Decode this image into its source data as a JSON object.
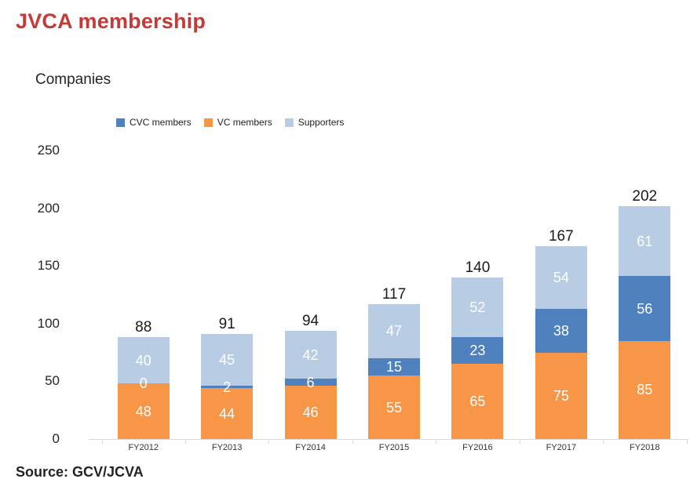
{
  "title": "JVCA membership",
  "source_text": "Source: GCV/JCVA",
  "colors": {
    "title": "#c23b38",
    "text": "#262626",
    "axis_line": "#d9d9d9",
    "bar_value_label": "#ffffff"
  },
  "chart_data": {
    "type": "bar",
    "stacked": true,
    "title": "JVCA membership",
    "ylabel": "Companies",
    "xlabel": "",
    "categories": [
      "FY2012",
      "FY2013",
      "FY2014",
      "FY2015",
      "FY2016",
      "FY2017",
      "FY2018"
    ],
    "series": [
      {
        "name": "CVC members",
        "color": "#4e81bd",
        "values": [
          0,
          2,
          6,
          15,
          23,
          38,
          56
        ]
      },
      {
        "name": "VC members",
        "color": "#f79646",
        "values": [
          48,
          44,
          46,
          55,
          65,
          75,
          85
        ]
      },
      {
        "name": "Supporters",
        "color": "#b8cce4",
        "values": [
          40,
          45,
          42,
          47,
          52,
          54,
          61
        ]
      }
    ],
    "stack_order_bottom_to_top": [
      "VC members",
      "CVC members",
      "Supporters"
    ],
    "totals": [
      88,
      91,
      94,
      117,
      140,
      167,
      202
    ],
    "yticks": [
      0,
      50,
      100,
      150,
      200,
      250
    ],
    "ylim": [
      0,
      250
    ],
    "grid": false,
    "legend_position": "top"
  }
}
